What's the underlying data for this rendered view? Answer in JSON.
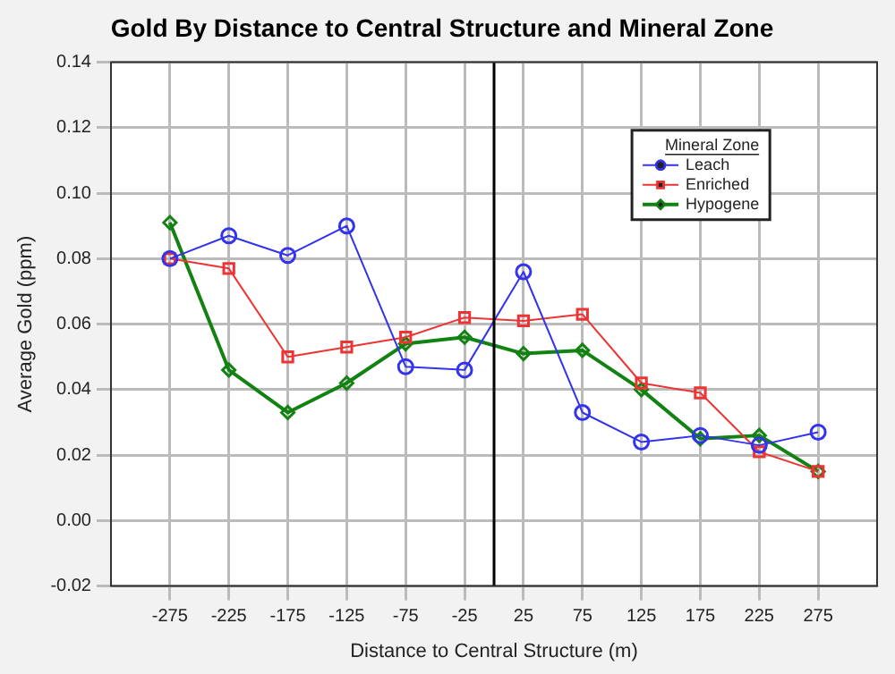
{
  "chart_data": {
    "type": "line",
    "title": "Gold By Distance to Central Structure and Mineral Zone",
    "xlabel": "Distance to Central Structure (m)",
    "ylabel": "Average Gold (ppm)",
    "legend_title": "Mineral Zone",
    "legend": "top right",
    "x": [
      -275,
      -225,
      -175,
      -125,
      -75,
      -25,
      25,
      75,
      125,
      175,
      225,
      275
    ],
    "xlim": [
      -325,
      325
    ],
    "xticks": [
      -275,
      -225,
      -175,
      -125,
      -75,
      -25,
      25,
      75,
      125,
      175,
      225,
      275
    ],
    "ylim": [
      -0.02,
      0.14
    ],
    "yticks": [
      -0.02,
      {
        "value": 0,
        "label": "0.00"
      },
      0.02,
      0.04,
      0.06,
      0.08,
      {
        "value": 0.1,
        "label": "0.10"
      },
      0.12,
      0.14
    ],
    "grid": true,
    "ref_lines": [
      {
        "axis": "x",
        "value": 0,
        "color": "#000000"
      }
    ],
    "series": [
      {
        "name": "Leach",
        "color": "#3333ee",
        "marker": "circle",
        "values": [
          0.08,
          0.087,
          0.081,
          0.09,
          0.047,
          0.046,
          0.076,
          0.033,
          0.024,
          0.026,
          0.023,
          0.027
        ]
      },
      {
        "name": "Enriched",
        "color": "#ee3333",
        "marker": "square",
        "values": [
          0.08,
          0.077,
          0.05,
          0.053,
          0.056,
          0.062,
          0.061,
          0.063,
          0.042,
          0.039,
          0.021,
          0.015
        ]
      },
      {
        "name": "Hypogene",
        "color": "#128212",
        "marker": "diamond",
        "values": [
          0.091,
          0.046,
          0.033,
          0.042,
          0.054,
          0.056,
          0.051,
          0.052,
          0.04,
          0.025,
          0.026,
          0.015
        ]
      }
    ]
  }
}
